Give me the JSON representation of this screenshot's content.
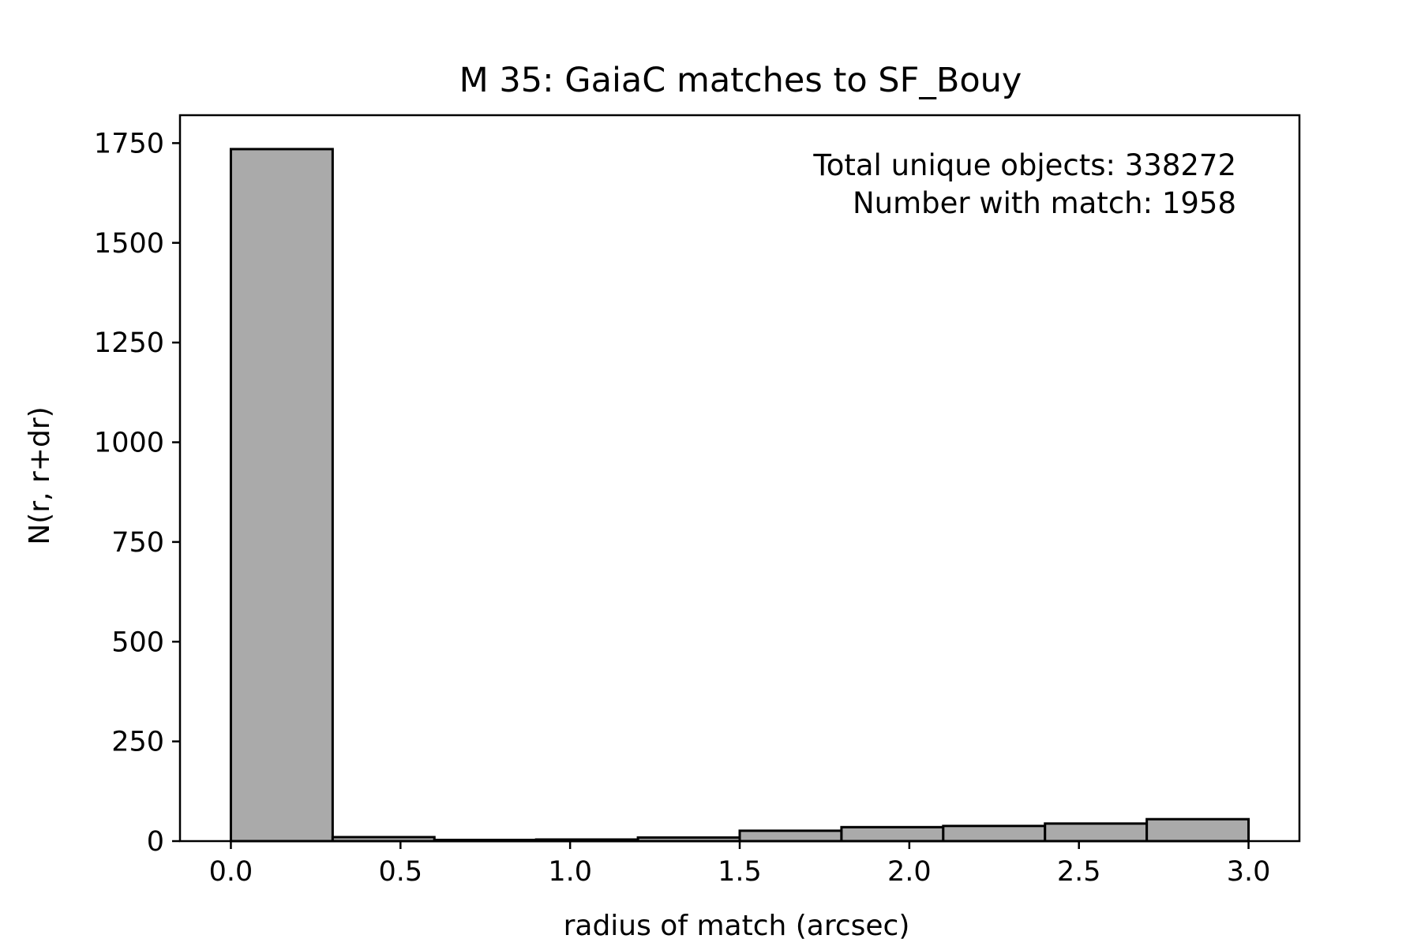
{
  "chart_data": {
    "type": "histogram",
    "title": "M 35: GaiaC matches to SF_Bouy",
    "xlabel": "radius of match (arcsec)",
    "ylabel": "N(r, r+dr)",
    "xlim": [
      -0.15,
      3.15
    ],
    "ylim": [
      0,
      1820
    ],
    "grid": false,
    "bar_color": "#aaaaaa",
    "edge_color": "#000000",
    "x_ticks": [
      0.0,
      0.5,
      1.0,
      1.5,
      2.0,
      2.5,
      3.0
    ],
    "x_tick_labels": [
      "0.0",
      "0.5",
      "1.0",
      "1.5",
      "2.0",
      "2.5",
      "3.0"
    ],
    "y_ticks": [
      0,
      250,
      500,
      750,
      1000,
      1250,
      1500,
      1750
    ],
    "y_tick_labels": [
      "0",
      "250",
      "500",
      "750",
      "1000",
      "1250",
      "1500",
      "1750"
    ],
    "bins": [
      {
        "x0": 0.0,
        "x1": 0.3,
        "count": 1735
      },
      {
        "x0": 0.3,
        "x1": 0.6,
        "count": 10
      },
      {
        "x0": 0.6,
        "x1": 0.9,
        "count": 3
      },
      {
        "x0": 0.9,
        "x1": 1.2,
        "count": 4
      },
      {
        "x0": 1.2,
        "x1": 1.5,
        "count": 9
      },
      {
        "x0": 1.5,
        "x1": 1.8,
        "count": 26
      },
      {
        "x0": 1.8,
        "x1": 2.1,
        "count": 35
      },
      {
        "x0": 2.1,
        "x1": 2.4,
        "count": 38
      },
      {
        "x0": 2.4,
        "x1": 2.7,
        "count": 44
      },
      {
        "x0": 2.7,
        "x1": 3.0,
        "count": 55
      }
    ],
    "annotations": [
      "Total unique objects: 338272",
      "Number with match: 1958"
    ],
    "annotation_position": "top-right"
  }
}
